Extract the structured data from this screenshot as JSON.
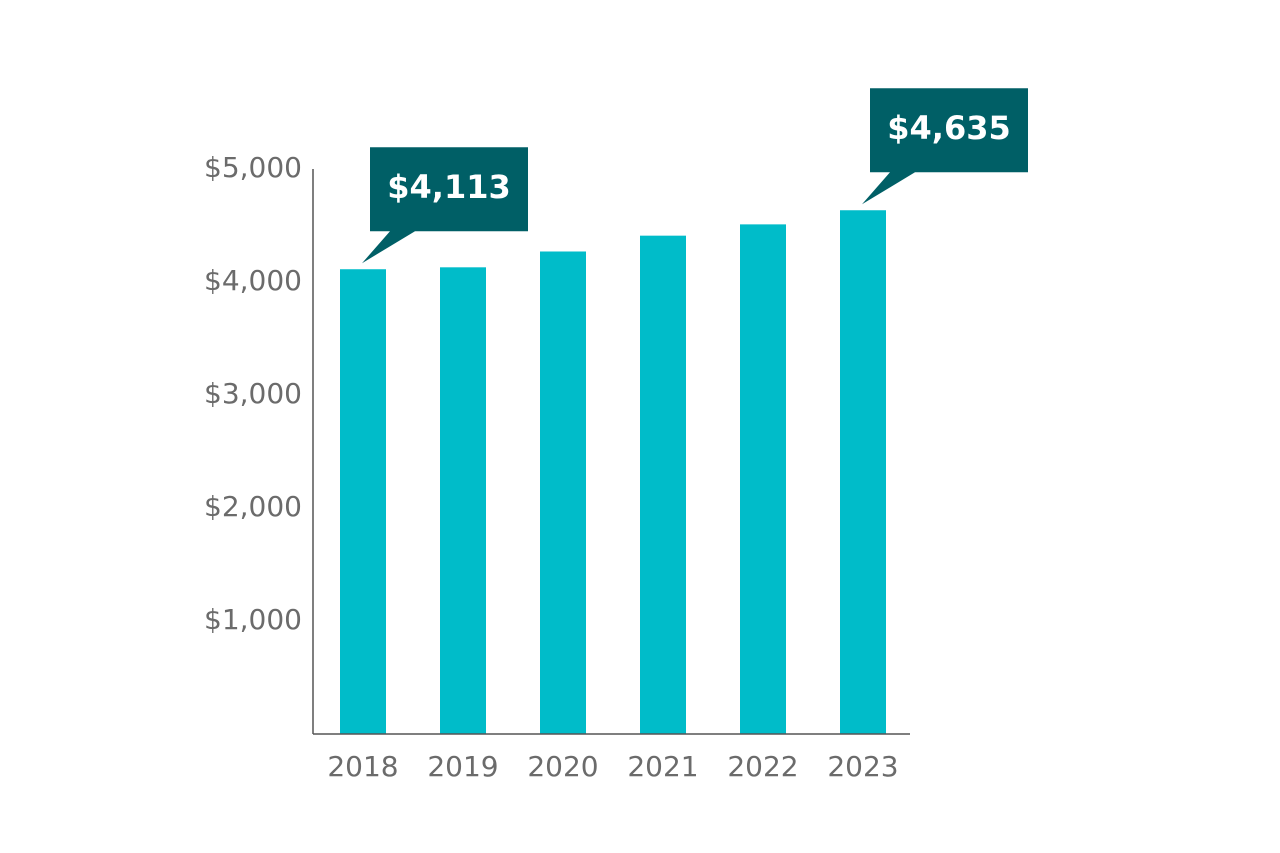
{
  "chart_data": {
    "type": "bar",
    "categories": [
      "2018",
      "2019",
      "2020",
      "2021",
      "2022",
      "2023"
    ],
    "values": [
      4113,
      4130,
      4270,
      4410,
      4510,
      4635
    ],
    "value_labels": [
      "$4,113",
      null,
      null,
      null,
      null,
      "$4,635"
    ],
    "color": "#00bcc9",
    "label_color": "#005f66",
    "ylim": [
      0,
      5000
    ],
    "yticks": [
      {
        "value": 1000,
        "label": "$1,000"
      },
      {
        "value": 2000,
        "label": "$2,000"
      },
      {
        "value": 3000,
        "label": "$3,000"
      },
      {
        "value": 4000,
        "label": "$4,000"
      },
      {
        "value": 5000,
        "label": "$5,000"
      }
    ],
    "grid": false
  }
}
